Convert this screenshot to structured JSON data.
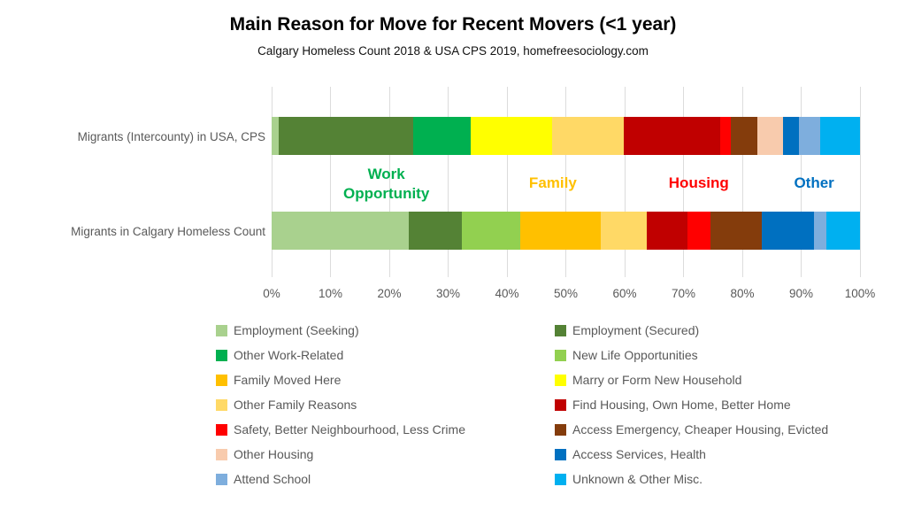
{
  "chart_data": {
    "type": "bar",
    "orientation": "horizontal-stacked",
    "title": "Main Reason for Move for Recent Movers (<1 year)",
    "subtitle": "Calgary Homeless Count 2018 & USA CPS 2019, homefreesociology.com",
    "categories": [
      "Migrants (Intercounty) in USA, CPS",
      "Migrants in Calgary Homeless Count"
    ],
    "xlim": [
      0,
      100
    ],
    "x_ticks": [
      "0%",
      "10%",
      "20%",
      "30%",
      "40%",
      "50%",
      "60%",
      "70%",
      "80%",
      "90%",
      "100%"
    ],
    "grid": "vertical",
    "legend_position": "bottom-two-columns",
    "series": [
      {
        "name": "Employment (Seeking)",
        "color": "#A9D18E",
        "values": [
          1.2,
          23.3
        ]
      },
      {
        "name": "Employment (Secured)",
        "color": "#548235",
        "values": [
          22.9,
          8.9
        ]
      },
      {
        "name": "Other Work-Related",
        "color": "#00B050",
        "values": [
          9.8,
          0
        ]
      },
      {
        "name": "New Life Opportunities",
        "color": "#92D050",
        "values": [
          0,
          9.9
        ]
      },
      {
        "name": "Family Moved Here",
        "color": "#FFC000",
        "values": [
          0,
          13.7
        ]
      },
      {
        "name": "Marry or Form New Household",
        "color": "#FFFF00",
        "values": [
          13.7,
          0
        ]
      },
      {
        "name": "Other Family Reasons",
        "color": "#FFD966",
        "values": [
          12.3,
          7.8
        ]
      },
      {
        "name": "Find Housing, Own Home, Better Home",
        "color": "#C00000",
        "values": [
          16.4,
          6.9
        ]
      },
      {
        "name": "Safety, Better Neighbourhood, Less Crime",
        "color": "#FF0000",
        "values": [
          1.8,
          3.9
        ]
      },
      {
        "name": "Access Emergency, Cheaper Housing, Evicted",
        "color": "#843C0C",
        "values": [
          4.4,
          8.7
        ]
      },
      {
        "name": "Other Housing",
        "color": "#F8CBAD",
        "values": [
          4.4,
          0
        ]
      },
      {
        "name": "Access Services, Health",
        "color": "#0070C0",
        "values": [
          2.7,
          8.9
        ]
      },
      {
        "name": "Attend School",
        "color": "#7EAEDD",
        "values": [
          3.6,
          2.1
        ]
      },
      {
        "name": "Unknown & Other Misc.",
        "color": "#00B0F0",
        "values": [
          6.8,
          5.7
        ]
      }
    ],
    "group_annotations": [
      {
        "label": "Work Opportunity",
        "color": "#00B050",
        "center_percent": 19.5,
        "two_lines": true
      },
      {
        "label": "Family",
        "color": "#FFC000",
        "center_percent": 47.8,
        "two_lines": false
      },
      {
        "label": "Housing",
        "color": "#FF0000",
        "center_percent": 72.6,
        "two_lines": false
      },
      {
        "label": "Other",
        "color": "#0070C0",
        "center_percent": 92.2,
        "two_lines": false
      }
    ],
    "legend_column_order": {
      "left": [
        0,
        2,
        4,
        6,
        8,
        10,
        12
      ],
      "right": [
        1,
        3,
        5,
        7,
        9,
        11,
        13
      ]
    }
  }
}
